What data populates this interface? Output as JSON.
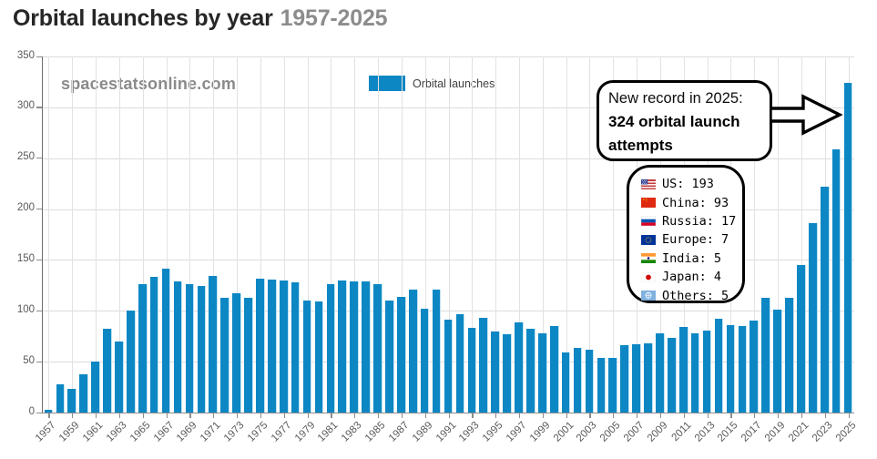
{
  "header": {
    "title_main": "Orbital launches by year",
    "title_period": "1957-2025"
  },
  "watermark": "spacestatsonline.com",
  "legend": {
    "label": "Orbital launches",
    "swatch_color": "#0d87c4"
  },
  "annotation": {
    "line1": "New record in 2025:",
    "line2": "324 orbital launch",
    "line3": "attempts"
  },
  "country_stats": [
    {
      "id": "us",
      "flag_icon": "us-flag-icon",
      "label": "US",
      "value": 193
    },
    {
      "id": "china",
      "flag_icon": "china-flag-icon",
      "label": "China",
      "value": 93
    },
    {
      "id": "russia",
      "flag_icon": "russia-flag-icon",
      "label": "Russia",
      "value": 17
    },
    {
      "id": "europe",
      "flag_icon": "europe-flag-icon",
      "label": "Europe",
      "value": 7
    },
    {
      "id": "india",
      "flag_icon": "india-flag-icon",
      "label": "India",
      "value": 5
    },
    {
      "id": "japan",
      "flag_icon": "japan-flag-icon",
      "label": "Japan",
      "value": 4
    },
    {
      "id": "others",
      "flag_icon": "un-flag-icon",
      "label": "Others",
      "value": 5
    }
  ],
  "chart_data": {
    "type": "bar",
    "title": "Orbital launches by year 1957-2025",
    "series_name": "Orbital launches",
    "bar_color": "#0d87c4",
    "grid": true,
    "legend_position": "top-center",
    "xlabel": "",
    "ylabel": "",
    "ylim": [
      0,
      350
    ],
    "yticks": [
      0,
      50,
      100,
      150,
      200,
      250,
      300,
      350
    ],
    "xtick_step": 2,
    "x": [
      1957,
      1958,
      1959,
      1960,
      1961,
      1962,
      1963,
      1964,
      1965,
      1966,
      1967,
      1968,
      1969,
      1970,
      1971,
      1972,
      1973,
      1974,
      1975,
      1976,
      1977,
      1978,
      1979,
      1980,
      1981,
      1982,
      1983,
      1984,
      1985,
      1986,
      1987,
      1988,
      1989,
      1990,
      1991,
      1992,
      1993,
      1994,
      1995,
      1996,
      1997,
      1998,
      1999,
      2000,
      2001,
      2002,
      2003,
      2004,
      2005,
      2006,
      2007,
      2008,
      2009,
      2010,
      2011,
      2012,
      2013,
      2014,
      2015,
      2016,
      2017,
      2018,
      2019,
      2020,
      2021,
      2022,
      2023,
      2024,
      2025
    ],
    "values": [
      3,
      28,
      23,
      38,
      50,
      82,
      70,
      100,
      126,
      133,
      141,
      129,
      126,
      124,
      134,
      113,
      117,
      113,
      132,
      131,
      130,
      128,
      110,
      109,
      126,
      130,
      129,
      129,
      126,
      110,
      114,
      121,
      102,
      121,
      91,
      97,
      83,
      93,
      80,
      77,
      89,
      82,
      78,
      85,
      59,
      64,
      62,
      54,
      54,
      66,
      67,
      68,
      78,
      73,
      84,
      78,
      81,
      92,
      86,
      85,
      90,
      113,
      101,
      113,
      145,
      186,
      222,
      259,
      324
    ]
  }
}
